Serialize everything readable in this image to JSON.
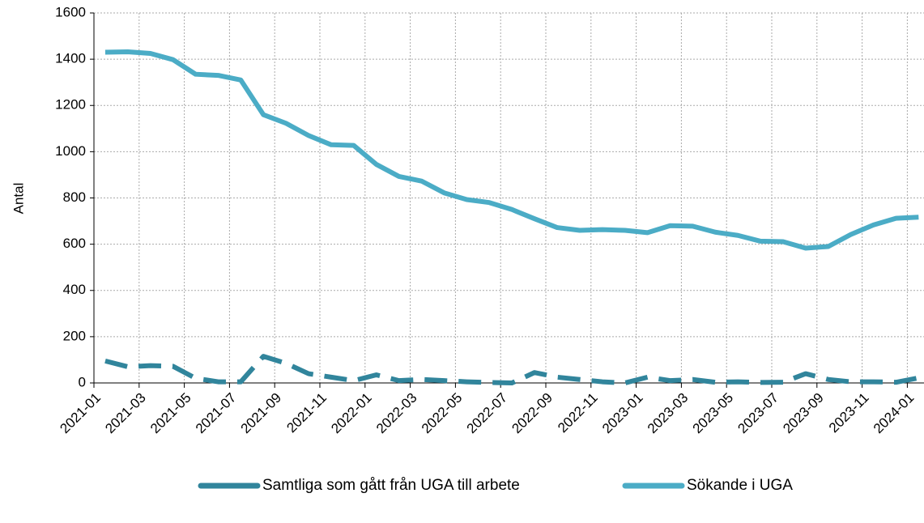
{
  "chart_data": {
    "type": "line",
    "y_label": "Antal",
    "categories": [
      "2021-01",
      null,
      "2021-03",
      null,
      "2021-05",
      null,
      "2021-07",
      null,
      "2021-09",
      null,
      "2021-11",
      null,
      "2022-01",
      null,
      "2022-03",
      null,
      "2022-05",
      null,
      "2022-07",
      null,
      "2022-09",
      null,
      "2022-11",
      null,
      "2023-01",
      null,
      "2023-03",
      null,
      "2023-05",
      null,
      "2023-07",
      null,
      "2023-09",
      null,
      "2023-11",
      null,
      "2024-01"
    ],
    "series": [
      {
        "name": "Samtliga som gått från UGA till arbete",
        "color": "#31859c",
        "dashed": true,
        "values": [
          95,
          70,
          75,
          72,
          20,
          5,
          5,
          115,
          85,
          40,
          25,
          10,
          35,
          10,
          15,
          10,
          5,
          2,
          0,
          45,
          25,
          15,
          5,
          0,
          25,
          10,
          15,
          3,
          5,
          2,
          3,
          40,
          15,
          5,
          5,
          3,
          22
        ]
      },
      {
        "name": "Sökande i UGA",
        "color": "#4bacc6",
        "dashed": false,
        "values": [
          1430,
          1432,
          1425,
          1398,
          1335,
          1330,
          1310,
          1160,
          1123,
          1070,
          1030,
          1027,
          945,
          893,
          873,
          822,
          793,
          780,
          750,
          710,
          672,
          660,
          663,
          660,
          650,
          680,
          678,
          652,
          638,
          613,
          611,
          583,
          590,
          642,
          683,
          712,
          717
        ]
      }
    ],
    "ylim": [
      0,
      1600
    ],
    "yticks": [
      0,
      200,
      400,
      600,
      800,
      1000,
      1200,
      1400,
      1600
    ],
    "grid": true,
    "legend": "bottom"
  }
}
